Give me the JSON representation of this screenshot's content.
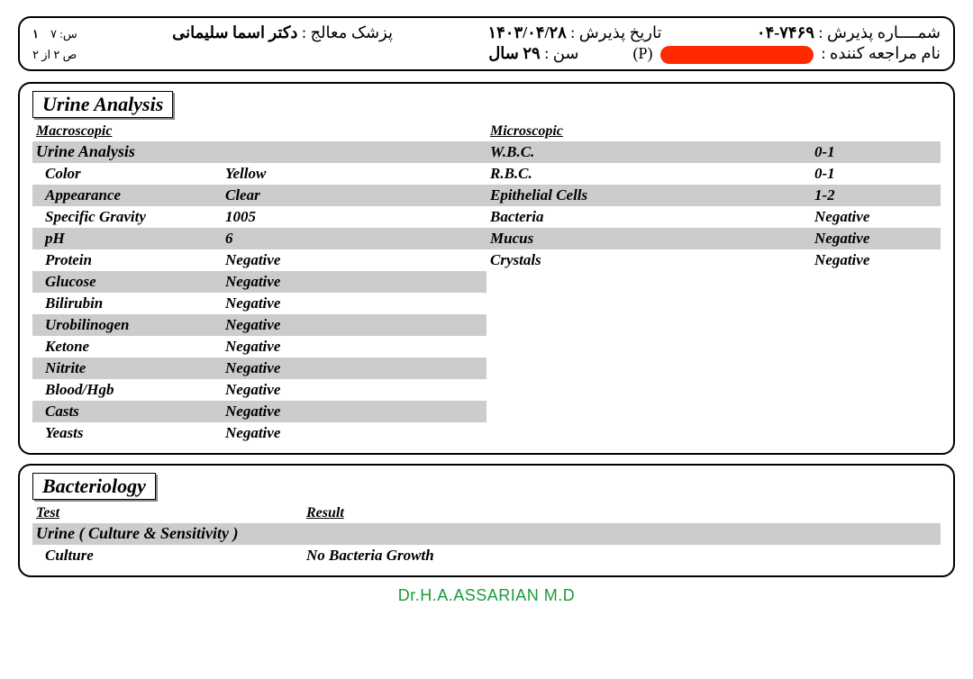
{
  "header": {
    "reception_no_label": "شمــــاره پذیرش :",
    "reception_no_value": "۷۴۶۹-۰۴",
    "reception_date_label": "تاریخ پذیرش :",
    "reception_date_value": "۱۴۰۳/۰۴/۲۸",
    "physician_label": "پزشک معالج :",
    "physician_value": "دکتر اسما سلیمانی",
    "page_s_label": "س:",
    "page_s_value": "۷",
    "page_num": "۱",
    "patient_label": "نام مراجعه کننده :",
    "patient_suffix": "(P)",
    "age_label": "سن :",
    "age_value": "۲۹ سال",
    "page_of": "ص ۲ از ۲"
  },
  "urine": {
    "section_title": "Urine Analysis",
    "macro_header": "Macroscopic",
    "group_title": "Urine Analysis",
    "rows": [
      {
        "label": "Color",
        "value": "Yellow"
      },
      {
        "label": "Appearance",
        "value": "Clear"
      },
      {
        "label": "Specific Gravity",
        "value": "1005"
      },
      {
        "label": "pH",
        "value": "6"
      },
      {
        "label": "Protein",
        "value": "Negative"
      },
      {
        "label": "Glucose",
        "value": "Negative"
      },
      {
        "label": "Bilirubin",
        "value": "Negative"
      },
      {
        "label": "Urobilinogen",
        "value": "Negative"
      },
      {
        "label": "Ketone",
        "value": "Negative"
      },
      {
        "label": "Nitrite",
        "value": "Negative"
      },
      {
        "label": "Blood/Hgb",
        "value": "Negative"
      },
      {
        "label": "Casts",
        "value": "Negative"
      },
      {
        "label": "Yeasts",
        "value": "Negative"
      }
    ],
    "micro_header": "Microscopic",
    "micro_rows": [
      {
        "label": "W.B.C.",
        "value": "0-1"
      },
      {
        "label": "R.B.C.",
        "value": "0-1"
      },
      {
        "label": "Epithelial Cells",
        "value": "1-2"
      },
      {
        "label": "Bacteria",
        "value": "Negative"
      },
      {
        "label": "Mucus",
        "value": "Negative"
      },
      {
        "label": "Crystals",
        "value": "Negative"
      }
    ]
  },
  "bact": {
    "section_title": "Bacteriology",
    "test_header": "Test",
    "result_header": "Result",
    "group_title": "Urine ( Culture & Sensitivity )",
    "rows": [
      {
        "label": "Culture",
        "value": "No Bacteria Growth"
      }
    ]
  },
  "footer": {
    "signature": "Dr.H.A.ASSARIAN  M.D"
  },
  "style": {
    "shade_color": "#cccccc",
    "text_color": "#000000",
    "sig_color": "#1a9b3a"
  }
}
